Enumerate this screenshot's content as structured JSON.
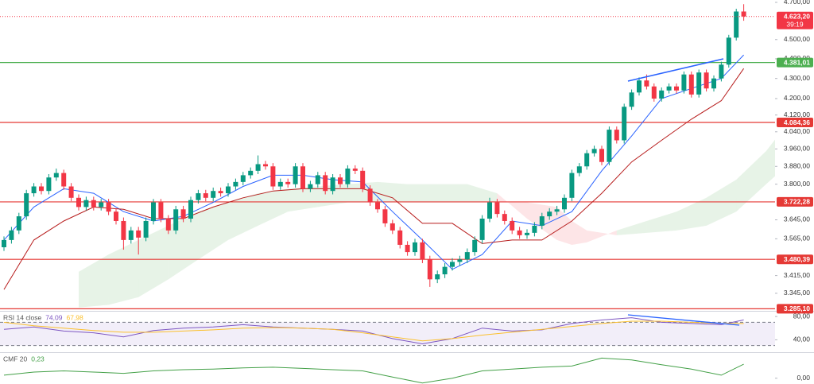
{
  "chart_data": [
    {
      "type": "candlestick",
      "log_scale": true,
      "ylim": [
        3277,
        4713
      ],
      "yticks": [
        {
          "value": 4700,
          "label": "4.700,00"
        },
        {
          "value": 4500,
          "label": "4.500,00"
        },
        {
          "value": 4400,
          "label": "4.400,00"
        },
        {
          "value": 4300,
          "label": "4.300,00"
        },
        {
          "value": 4200,
          "label": "4.200,00"
        },
        {
          "value": 4120,
          "label": "4.120,00"
        },
        {
          "value": 4040,
          "label": "4.040,00"
        },
        {
          "value": 3960,
          "label": "3.960,00"
        },
        {
          "value": 3880,
          "label": "3.880,00"
        },
        {
          "value": 3800,
          "label": "3.800,00"
        },
        {
          "value": 3645,
          "label": "3.645,00"
        },
        {
          "value": 3565,
          "label": "3.565,00"
        },
        {
          "value": 3415,
          "label": "3.415,00"
        },
        {
          "value": 3345,
          "label": "3.345,00"
        }
      ],
      "up_color": "#089981",
      "down_color": "#f23645",
      "open": [
        3530,
        3560,
        3600,
        3660,
        3760,
        3790,
        3770,
        3830,
        3850,
        3790,
        3740,
        3700,
        3730,
        3700,
        3720,
        3680,
        3640,
        3560,
        3600,
        3570,
        3640,
        3720,
        3650,
        3600,
        3690,
        3650,
        3730,
        3760,
        3740,
        3770,
        3760,
        3790,
        3810,
        3840,
        3860,
        3890,
        3880,
        3790,
        3810,
        3800,
        3880,
        3780,
        3800,
        3840,
        3770,
        3830,
        3800,
        3870,
        3860,
        3780,
        3720,
        3690,
        3630,
        3600,
        3540,
        3510,
        3550,
        3480,
        3400,
        3420,
        3450,
        3470,
        3480,
        3510,
        3560,
        3650,
        3720,
        3670,
        3640,
        3600,
        3580,
        3590,
        3620,
        3660,
        3680,
        3690,
        3740,
        3850,
        3880,
        3940,
        3960,
        3900,
        4050,
        4000,
        4160,
        4230,
        4290,
        4260,
        4200,
        4240,
        4260,
        4240,
        4320,
        4220,
        4330,
        4250,
        4300,
        4370,
        4510,
        4650
      ],
      "high": [
        3575,
        3615,
        3675,
        3775,
        3805,
        3805,
        3845,
        3870,
        3865,
        3805,
        3755,
        3745,
        3745,
        3735,
        3735,
        3695,
        3655,
        3615,
        3615,
        3655,
        3735,
        3735,
        3665,
        3705,
        3705,
        3745,
        3775,
        3775,
        3785,
        3785,
        3805,
        3825,
        3855,
        3875,
        3930,
        3905,
        3895,
        3825,
        3825,
        3895,
        3895,
        3815,
        3855,
        3855,
        3845,
        3845,
        3885,
        3885,
        3875,
        3795,
        3735,
        3705,
        3645,
        3615,
        3555,
        3565,
        3565,
        3495,
        3435,
        3465,
        3485,
        3495,
        3525,
        3575,
        3665,
        3740,
        3735,
        3685,
        3655,
        3615,
        3605,
        3635,
        3675,
        3695,
        3705,
        3755,
        3865,
        3895,
        3955,
        3975,
        3975,
        4065,
        4065,
        4175,
        4245,
        4305,
        4320,
        4275,
        4255,
        4275,
        4275,
        4335,
        4335,
        4345,
        4345,
        4315,
        4385,
        4525,
        4665,
        4690
      ],
      "low": [
        3515,
        3545,
        3585,
        3645,
        3745,
        3755,
        3755,
        3815,
        3775,
        3725,
        3685,
        3685,
        3685,
        3685,
        3665,
        3625,
        3520,
        3545,
        3500,
        3555,
        3625,
        3635,
        3585,
        3585,
        3635,
        3635,
        3715,
        3725,
        3725,
        3745,
        3745,
        3775,
        3795,
        3825,
        3845,
        3865,
        3775,
        3775,
        3785,
        3785,
        3765,
        3765,
        3785,
        3755,
        3755,
        3785,
        3785,
        3845,
        3765,
        3705,
        3675,
        3615,
        3585,
        3525,
        3495,
        3495,
        3465,
        3370,
        3385,
        3405,
        3435,
        3455,
        3465,
        3495,
        3545,
        3635,
        3655,
        3625,
        3585,
        3565,
        3565,
        3575,
        3605,
        3645,
        3665,
        3675,
        3725,
        3835,
        3865,
        3925,
        3885,
        3885,
        3985,
        3985,
        4145,
        4215,
        4245,
        4185,
        4185,
        4225,
        4225,
        4225,
        4205,
        4205,
        4235,
        4235,
        4285,
        4355,
        4495,
        4600
      ],
      "close": [
        3560,
        3600,
        3660,
        3760,
        3790,
        3770,
        3830,
        3850,
        3790,
        3740,
        3700,
        3730,
        3700,
        3720,
        3680,
        3640,
        3560,
        3600,
        3570,
        3640,
        3720,
        3650,
        3600,
        3690,
        3650,
        3730,
        3760,
        3740,
        3770,
        3760,
        3790,
        3810,
        3840,
        3860,
        3890,
        3880,
        3790,
        3810,
        3800,
        3880,
        3780,
        3800,
        3840,
        3770,
        3830,
        3800,
        3870,
        3860,
        3780,
        3720,
        3690,
        3630,
        3600,
        3540,
        3510,
        3550,
        3480,
        3400,
        3420,
        3450,
        3470,
        3480,
        3510,
        3560,
        3650,
        3720,
        3670,
        3640,
        3600,
        3580,
        3590,
        3620,
        3660,
        3680,
        3690,
        3740,
        3850,
        3880,
        3940,
        3960,
        3900,
        4050,
        4000,
        4160,
        4230,
        4290,
        4260,
        4200,
        4240,
        4260,
        4240,
        4320,
        4220,
        4330,
        4250,
        4300,
        4370,
        4510,
        4650,
        4623.2
      ],
      "series": [
        {
          "color": "#2962ff",
          "x": [
            0,
            4,
            8,
            12,
            16,
            20,
            24,
            28,
            32,
            36,
            40,
            44,
            48,
            52,
            56,
            60,
            64,
            68,
            72,
            76,
            80,
            84,
            88,
            92,
            96,
            99
          ],
          "values": [
            3560,
            3700,
            3780,
            3760,
            3680,
            3640,
            3660,
            3720,
            3790,
            3840,
            3840,
            3820,
            3810,
            3680,
            3560,
            3440,
            3500,
            3640,
            3620,
            3680,
            3860,
            4020,
            4200,
            4250,
            4300,
            4420
          ]
        },
        {
          "color": "#b71c1c",
          "x": [
            0,
            4,
            8,
            12,
            16,
            20,
            24,
            28,
            32,
            36,
            40,
            44,
            48,
            52,
            56,
            60,
            64,
            68,
            72,
            76,
            80,
            84,
            88,
            92,
            96,
            99
          ],
          "values": [
            3360,
            3560,
            3640,
            3700,
            3690,
            3650,
            3650,
            3700,
            3740,
            3770,
            3780,
            3780,
            3780,
            3740,
            3630,
            3630,
            3545,
            3560,
            3560,
            3640,
            3760,
            3900,
            4000,
            4100,
            4190,
            4350
          ]
        }
      ],
      "cloud": {
        "up_color": "#43a047",
        "down_color": "#f23645",
        "x": [
          10,
          14,
          18,
          22,
          26,
          30,
          34,
          38,
          42,
          46,
          50,
          54,
          58,
          62,
          66,
          70,
          74,
          76,
          78,
          82,
          86,
          90,
          94,
          98,
          102,
          104
        ],
        "span_a": [
          3430,
          3500,
          3560,
          3620,
          3680,
          3720,
          3760,
          3780,
          3790,
          3800,
          3810,
          3800,
          3800,
          3800,
          3760,
          3650,
          3560,
          3540,
          3550,
          3600,
          3640,
          3680,
          3740,
          3820,
          3950,
          4040
        ],
        "span_b": [
          3290,
          3300,
          3330,
          3400,
          3480,
          3560,
          3620,
          3680,
          3700,
          3720,
          3720,
          3720,
          3720,
          3720,
          3720,
          3720,
          3700,
          3640,
          3600,
          3580,
          3590,
          3600,
          3620,
          3680,
          3800,
          3860
        ]
      },
      "levels": [
        {
          "value": 4381.01,
          "label": "4.381,01",
          "color": "#4caf50"
        },
        {
          "value": 4084.36,
          "label": "4.084,36",
          "color": "#e53935"
        },
        {
          "value": 3722.28,
          "label": "3.722,28",
          "color": "#e53935"
        },
        {
          "value": 3480.39,
          "label": "3.480,39",
          "color": "#e53935"
        },
        {
          "value": 3285.1,
          "label": "3.285,10",
          "color": "#e53935"
        }
      ],
      "last_price": {
        "value": 4623.2,
        "label": "4.623,20",
        "timer": "39:19",
        "color": "#f23645"
      }
    },
    {
      "type": "line",
      "title": "RSI 14 close",
      "ylim": [
        20,
        87
      ],
      "band": [
        30,
        70
      ],
      "yticks": [
        {
          "value": 80,
          "label": "80,00"
        },
        {
          "value": 40,
          "label": "40,00"
        }
      ],
      "series": [
        {
          "color": "#7e57c2",
          "last_label": "74,09",
          "x": [
            0,
            4,
            8,
            12,
            16,
            20,
            24,
            28,
            32,
            36,
            40,
            44,
            48,
            52,
            56,
            60,
            64,
            68,
            72,
            76,
            80,
            84,
            88,
            92,
            96,
            99
          ],
          "values": [
            58,
            62,
            55,
            52,
            45,
            56,
            60,
            62,
            66,
            62,
            60,
            58,
            55,
            42,
            33,
            42,
            60,
            55,
            57,
            68,
            74,
            78,
            70,
            68,
            66,
            74.09
          ]
        },
        {
          "color": "#fbc02d",
          "last_label": "67,98",
          "x": [
            0,
            4,
            8,
            12,
            16,
            20,
            24,
            28,
            32,
            36,
            40,
            44,
            48,
            52,
            56,
            60,
            64,
            68,
            72,
            76,
            80,
            84,
            88,
            92,
            96,
            99
          ],
          "values": [
            70,
            64,
            60,
            56,
            53,
            53,
            55,
            57,
            60,
            61,
            60,
            58,
            52,
            45,
            38,
            42,
            48,
            53,
            58,
            63,
            68,
            72,
            72,
            70,
            68,
            67.98
          ]
        }
      ]
    },
    {
      "type": "line",
      "title": "CMF 20",
      "ylim": [
        -0.095,
        0.4
      ],
      "yticks": [
        {
          "value": 0,
          "label": "0,00"
        }
      ],
      "series": [
        {
          "color": "#43a047",
          "last_label": "0,23",
          "x": [
            0,
            4,
            8,
            12,
            16,
            20,
            24,
            28,
            32,
            36,
            40,
            44,
            48,
            52,
            56,
            60,
            64,
            68,
            72,
            76,
            80,
            84,
            88,
            92,
            96,
            99
          ],
          "values": [
            0.05,
            0.1,
            0.12,
            0.1,
            0.08,
            0.12,
            0.14,
            0.15,
            0.17,
            0.18,
            0.16,
            0.14,
            0.12,
            0.02,
            -0.08,
            0,
            0.12,
            0.15,
            0.18,
            0.2,
            0.33,
            0.3,
            0.22,
            0.15,
            0.05,
            0.23
          ]
        }
      ]
    }
  ]
}
